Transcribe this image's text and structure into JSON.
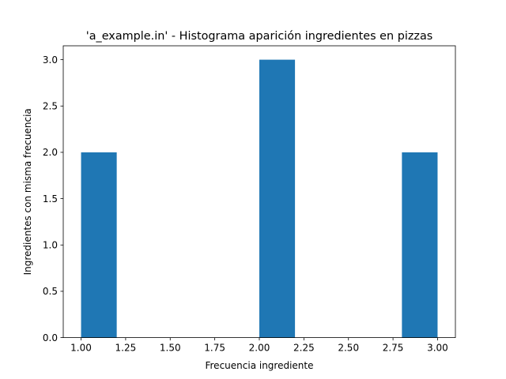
{
  "chart_data": {
    "type": "bar",
    "title": "'a_example.in' - Histograma aparición ingredientes en pizzas",
    "xlabel": "Frecuencia ingrediente",
    "ylabel": "Ingredientes con misma frecuencia",
    "xlim": [
      0.9,
      3.1
    ],
    "ylim": [
      0,
      3.15
    ],
    "xticks": [
      1.0,
      1.25,
      1.5,
      1.75,
      2.0,
      2.25,
      2.5,
      2.75,
      3.0
    ],
    "xtick_labels": [
      "1.00",
      "1.25",
      "1.50",
      "1.75",
      "2.00",
      "2.25",
      "2.50",
      "2.75",
      "3.00"
    ],
    "yticks": [
      0.0,
      0.5,
      1.0,
      1.5,
      2.0,
      2.5,
      3.0
    ],
    "ytick_labels": [
      "0.0",
      "0.5",
      "1.0",
      "1.5",
      "2.0",
      "2.5",
      "3.0"
    ],
    "bins": [
      {
        "start": 1.0,
        "end": 1.2,
        "count": 2
      },
      {
        "start": 1.2,
        "end": 1.4,
        "count": 0
      },
      {
        "start": 1.4,
        "end": 1.6,
        "count": 0
      },
      {
        "start": 1.6,
        "end": 1.8,
        "count": 0
      },
      {
        "start": 1.8,
        "end": 2.0,
        "count": 0
      },
      {
        "start": 2.0,
        "end": 2.2,
        "count": 3
      },
      {
        "start": 2.2,
        "end": 2.4,
        "count": 0
      },
      {
        "start": 2.4,
        "end": 2.6,
        "count": 0
      },
      {
        "start": 2.6,
        "end": 2.8,
        "count": 0
      },
      {
        "start": 2.8,
        "end": 3.0,
        "count": 2
      }
    ],
    "bar_color": "#1f77b4",
    "grid": false
  }
}
